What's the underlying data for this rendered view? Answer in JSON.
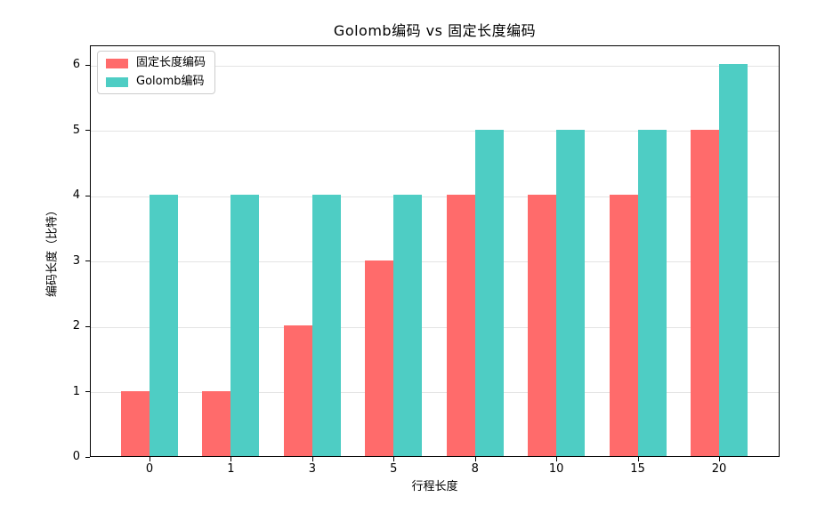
{
  "figure": {
    "title": "Golomb编码 vs 固定长度编码"
  },
  "chart_data": {
    "type": "bar",
    "title": "Golomb编码 vs 固定长度编码",
    "xlabel": "行程长度",
    "ylabel": "编码长度（比特）",
    "categories": [
      "0",
      "1",
      "3",
      "5",
      "8",
      "10",
      "15",
      "20"
    ],
    "series": [
      {
        "name": "固定长度编码",
        "color": "#FF6B6B",
        "values": [
          1,
          1,
          2,
          3,
          4,
          4,
          4,
          5
        ]
      },
      {
        "name": "Golomb编码",
        "color": "#4ECDC4",
        "values": [
          4,
          4,
          4,
          4,
          5,
          5,
          5,
          6
        ]
      }
    ],
    "yticks": [
      0,
      1,
      2,
      3,
      4,
      5,
      6
    ],
    "ylim": [
      0,
      6.3
    ],
    "grid": "y",
    "grid_color": "#e4e4e4",
    "legend_position": "upper-left",
    "bar_group_layout": "two bars per category, fixed-length left, Golomb right"
  }
}
